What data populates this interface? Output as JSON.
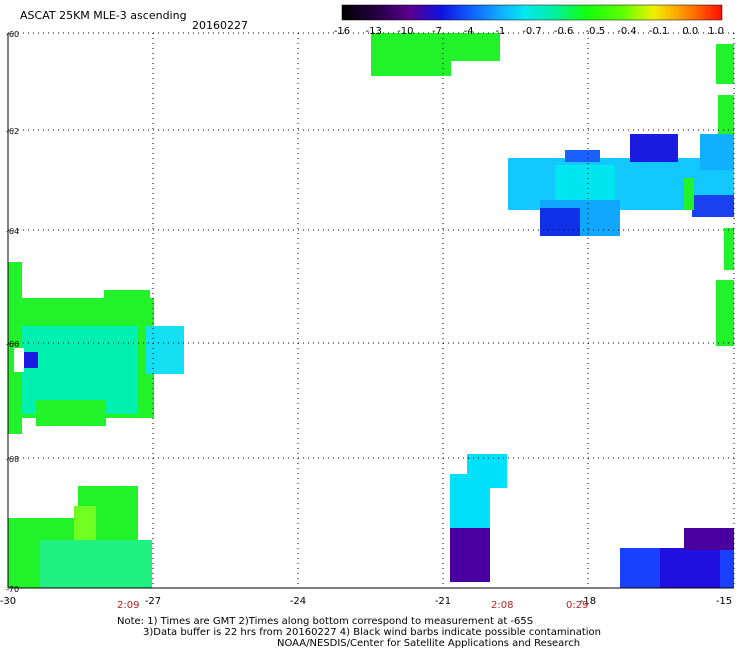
{
  "header": {
    "title": "ASCAT 25KM MLE-3 ascending",
    "date": "20160227"
  },
  "colorbar": {
    "labels": [
      "-16",
      "-13",
      "-10",
      "-7",
      "-4",
      "-1",
      "-0.7",
      "-0.6",
      "-0.5",
      "-0.4",
      "-0.1",
      "0.0",
      "1.0"
    ]
  },
  "axes": {
    "x_ticks": [
      "-30",
      "-27",
      "-24",
      "-21",
      "-18",
      "-15"
    ],
    "y_ticks": [
      "-60",
      "-62",
      "-64",
      "-66",
      "-68",
      "-70"
    ]
  },
  "times": [
    "2:09",
    "2:08",
    "0:29"
  ],
  "notes": {
    "line1": "Note: 1) Times are GMT 2)Times along bottom correspond to measurement at -65S",
    "line2": "3)Data buffer is 22 hrs from 20160227 4) Black wind barbs indicate possible contamination",
    "line3": "NOAA/NESDIS/Center for Satellite Applications and Research"
  }
}
